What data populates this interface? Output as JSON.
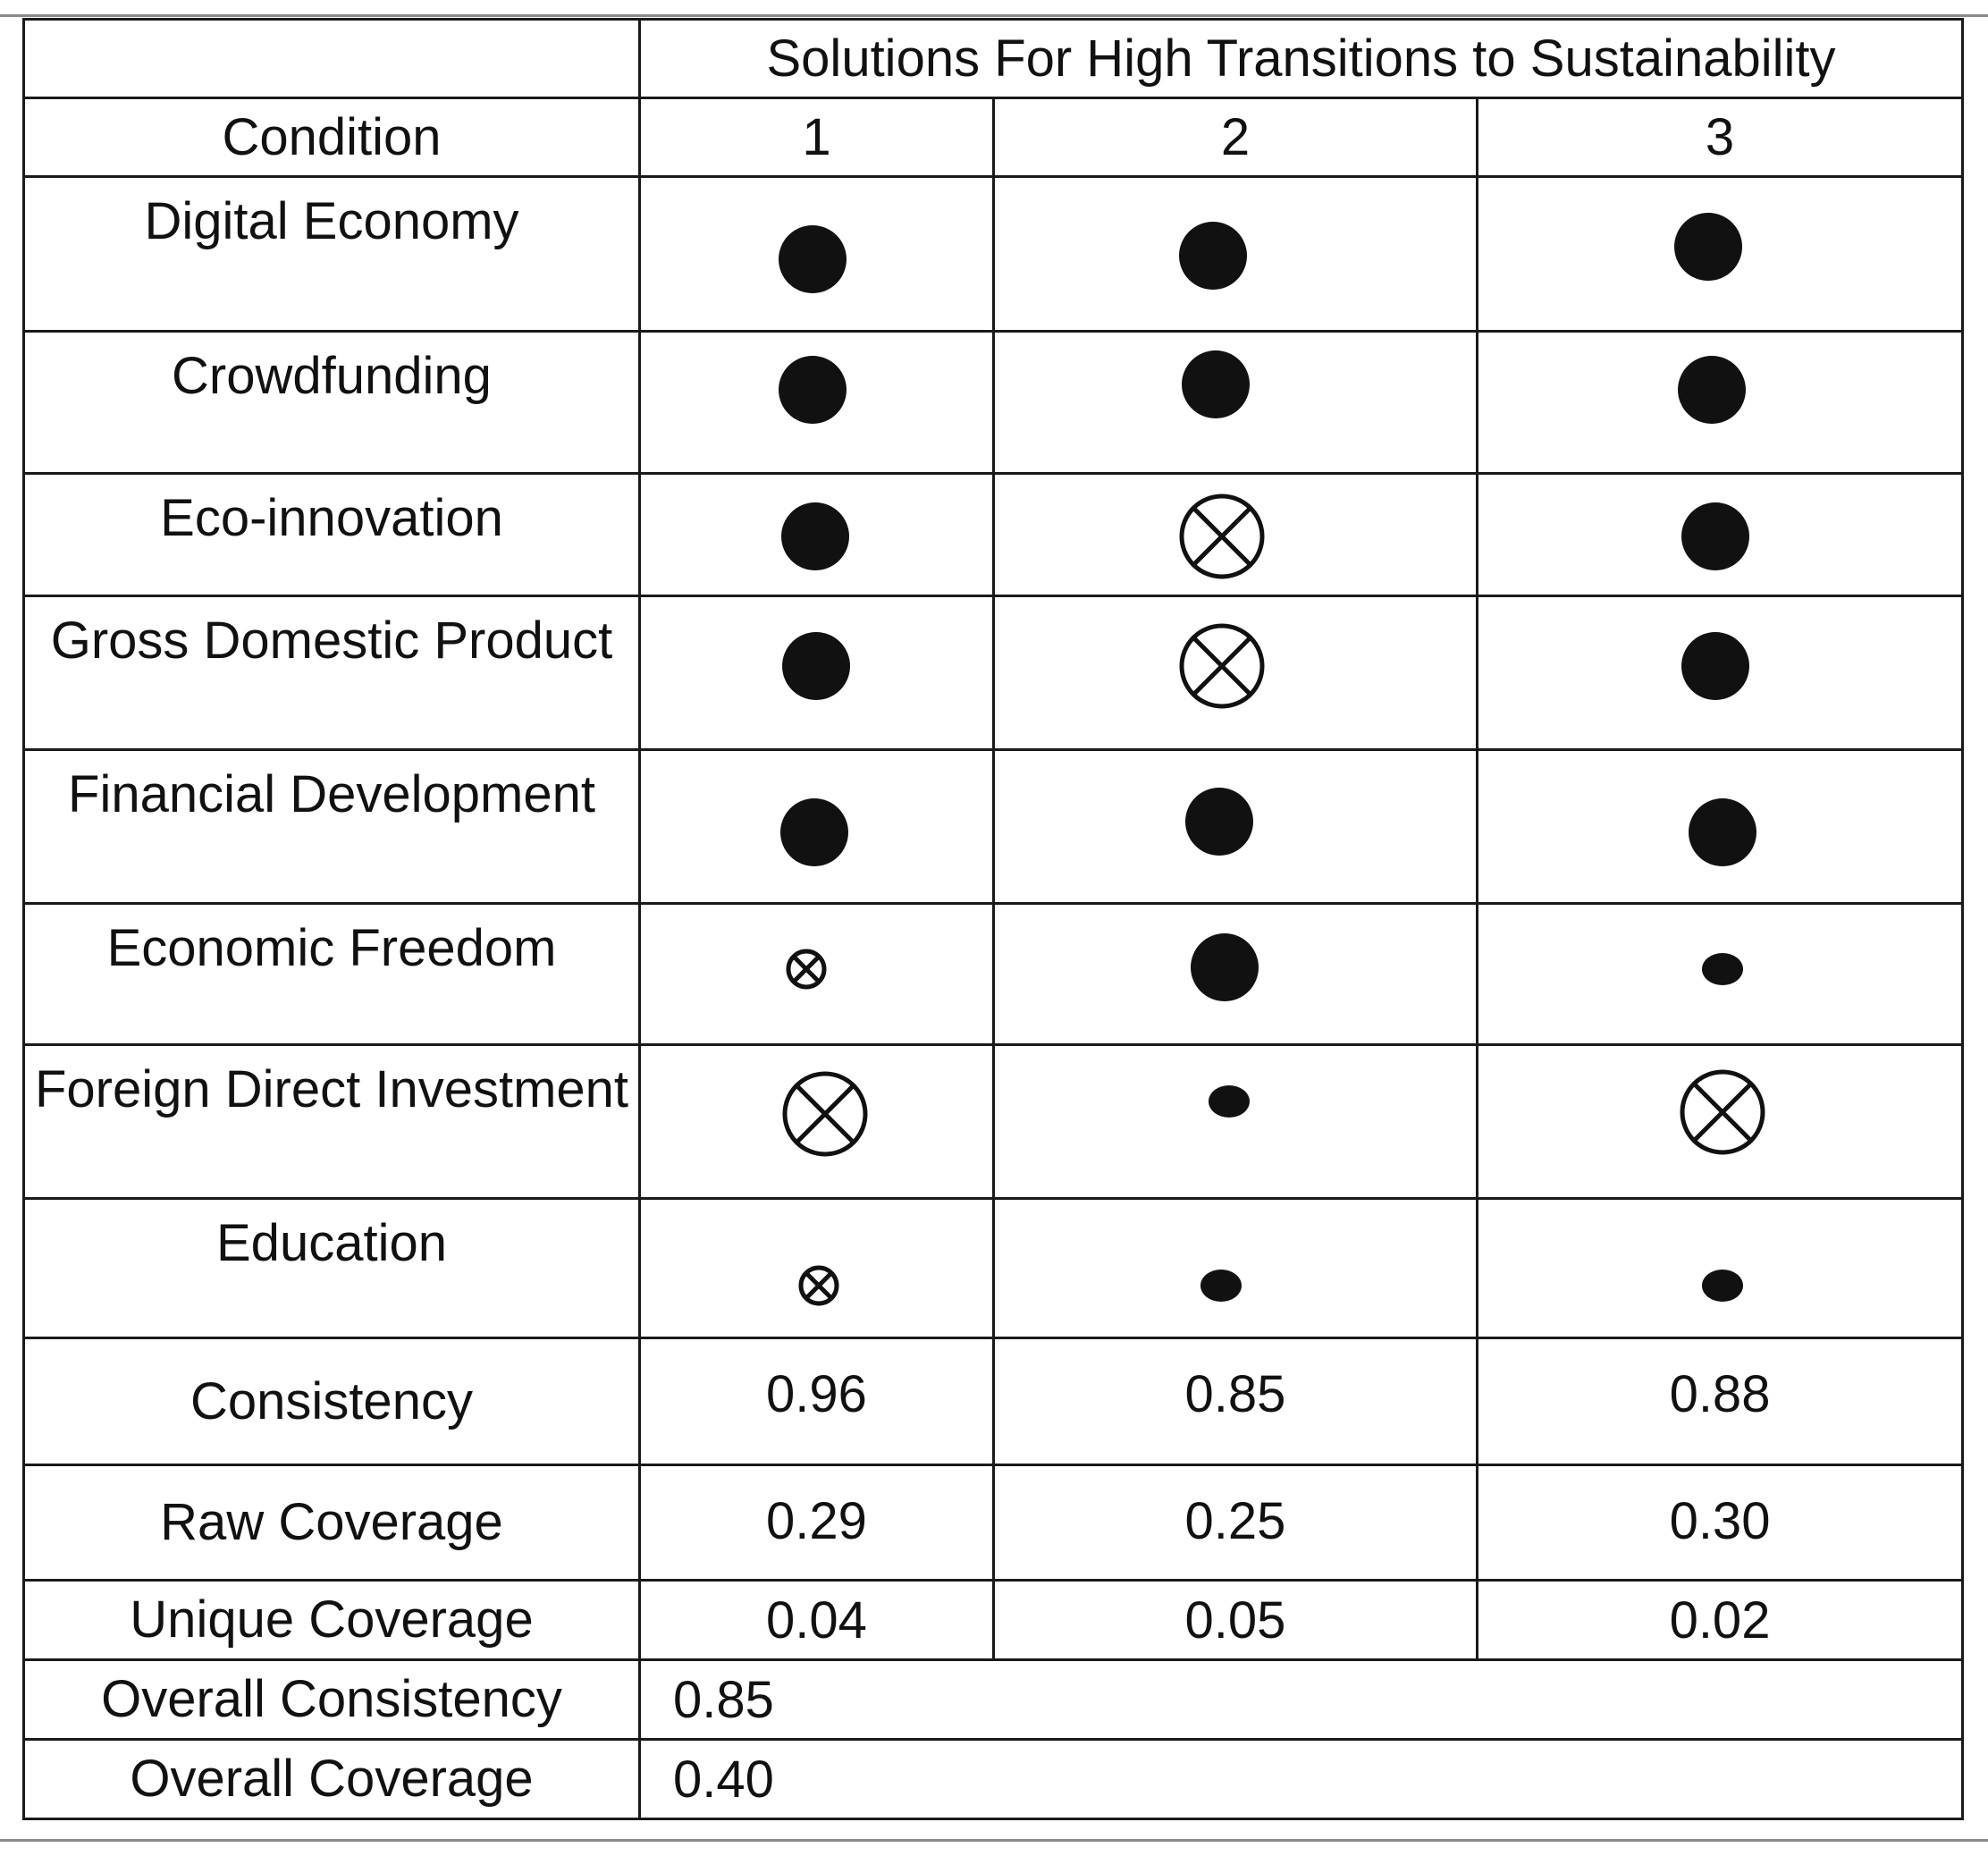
{
  "header": {
    "title": "Solutions For High Transitions to Sustainability",
    "condition_label": "Condition",
    "solutions": [
      "1",
      "2",
      "3"
    ]
  },
  "conditions": [
    {
      "name": "Digital Economy",
      "marks": [
        "core-present",
        "core-present",
        "core-present"
      ]
    },
    {
      "name": "Crowdfunding",
      "marks": [
        "core-present",
        "core-present",
        "core-present"
      ]
    },
    {
      "name": "Eco-innovation",
      "marks": [
        "core-present",
        "core-absent",
        "core-present"
      ]
    },
    {
      "name": "Gross Domestic Product",
      "marks": [
        "core-present",
        "core-absent",
        "core-present"
      ]
    },
    {
      "name": "Financial Development",
      "marks": [
        "core-present",
        "core-present",
        "core-present"
      ]
    },
    {
      "name": "Economic Freedom",
      "marks": [
        "peripheral-absent",
        "core-present",
        "peripheral-present"
      ]
    },
    {
      "name": "Foreign Direct Investment",
      "marks": [
        "core-absent",
        "peripheral-present",
        "core-absent"
      ]
    },
    {
      "name": "Education",
      "marks": [
        "peripheral-absent",
        "peripheral-present",
        "peripheral-present"
      ]
    }
  ],
  "metrics": [
    {
      "label": "Consistency",
      "values": [
        "0.96",
        "0.85",
        "0.88"
      ]
    },
    {
      "label": "Raw Coverage",
      "values": [
        "0.29",
        "0.25",
        "0.30"
      ]
    },
    {
      "label": "Unique Coverage",
      "values": [
        "0.04",
        "0.05",
        "0.02"
      ]
    }
  ],
  "overall": {
    "consistency_label": "Overall Consistency",
    "consistency": "0.85",
    "coverage_label": "Overall Coverage",
    "coverage": "0.40"
  },
  "chart_data": {
    "type": "table",
    "title": "Solutions For High Transitions to Sustainability",
    "columns": [
      "Condition",
      "1",
      "2",
      "3"
    ],
    "rows": [
      [
        "Digital Economy",
        "core-present",
        "core-present",
        "core-present"
      ],
      [
        "Crowdfunding",
        "core-present",
        "core-present",
        "core-present"
      ],
      [
        "Eco-innovation",
        "core-present",
        "core-absent",
        "core-present"
      ],
      [
        "Gross Domestic Product",
        "core-present",
        "core-absent",
        "core-present"
      ],
      [
        "Financial Development",
        "core-present",
        "core-present",
        "core-present"
      ],
      [
        "Economic Freedom",
        "peripheral-absent",
        "core-present",
        "peripheral-present"
      ],
      [
        "Foreign Direct Investment",
        "core-absent",
        "peripheral-present",
        "core-absent"
      ],
      [
        "Education",
        "peripheral-absent",
        "peripheral-present",
        "peripheral-present"
      ],
      [
        "Consistency",
        0.96,
        0.85,
        0.88
      ],
      [
        "Raw Coverage",
        0.29,
        0.25,
        0.3
      ],
      [
        "Unique Coverage",
        0.04,
        0.05,
        0.02
      ],
      [
        "Overall Consistency",
        0.85
      ],
      [
        "Overall Coverage",
        0.4
      ]
    ],
    "symbol_colors": {
      "fill": "#111111",
      "stroke": "#111111",
      "background": "#ffffff"
    }
  }
}
